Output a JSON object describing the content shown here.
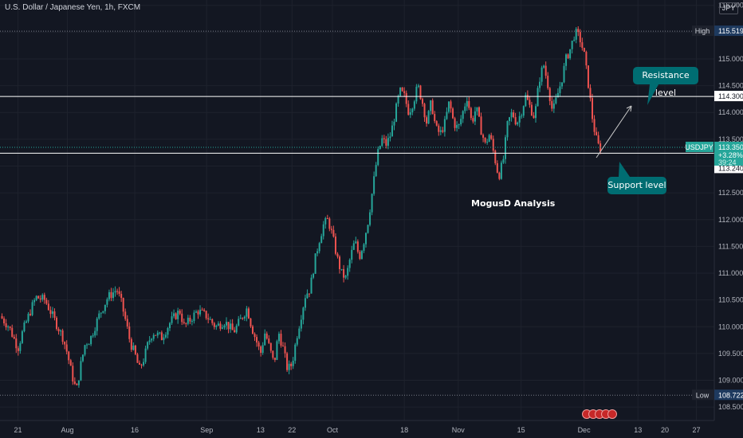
{
  "header": {
    "title": "U.S. Dollar / Japanese Yen, 1h, FXCM",
    "currency": "JPY"
  },
  "chart_data": {
    "type": "candlestick",
    "symbol": "USDJPY",
    "ylim": [
      108.25,
      116.1
    ],
    "y_ticks": [
      "108.500",
      "109.000",
      "109.500",
      "110.000",
      "110.500",
      "111.000",
      "111.500",
      "112.000",
      "112.500",
      "113.000",
      "113.500",
      "114.000",
      "114.500",
      "115.000",
      "115.500",
      "116.000"
    ],
    "x_ticks": [
      {
        "label": "21",
        "t": 0
      },
      {
        "label": "Aug",
        "t": 11
      },
      {
        "label": "16",
        "t": 26
      },
      {
        "label": "Sep",
        "t": 42
      },
      {
        "label": "13",
        "t": 54
      },
      {
        "label": "22",
        "t": 61
      },
      {
        "label": "Oct",
        "t": 70
      },
      {
        "label": "18",
        "t": 86
      },
      {
        "label": "Nov",
        "t": 98
      },
      {
        "label": "15",
        "t": 112
      },
      {
        "label": "Dec",
        "t": 126
      },
      {
        "label": "13",
        "t": 138
      },
      {
        "label": "20",
        "t": 144
      },
      {
        "label": "27",
        "t": 151
      }
    ],
    "t_range": [
      -4,
      155
    ],
    "series_close": [
      [
        -4,
        110.2
      ],
      [
        -2,
        110.0
      ],
      [
        0,
        109.6
      ],
      [
        1,
        109.9
      ],
      [
        3,
        110.35
      ],
      [
        4,
        110.55
      ],
      [
        6,
        110.5
      ],
      [
        8,
        110.15
      ],
      [
        10,
        109.8
      ],
      [
        11,
        109.5
      ],
      [
        12,
        109.1
      ],
      [
        13,
        108.8
      ],
      [
        14,
        109.3
      ],
      [
        15,
        109.7
      ],
      [
        16,
        109.75
      ],
      [
        18,
        110.2
      ],
      [
        20,
        110.55
      ],
      [
        22,
        110.7
      ],
      [
        23,
        110.45
      ],
      [
        24,
        110.1
      ],
      [
        25,
        109.7
      ],
      [
        26,
        109.5
      ],
      [
        27,
        109.2
      ],
      [
        28,
        109.4
      ],
      [
        29,
        109.7
      ],
      [
        30,
        109.9
      ],
      [
        32,
        109.8
      ],
      [
        34,
        110.1
      ],
      [
        36,
        110.3
      ],
      [
        37,
        110.0
      ],
      [
        38,
        110.1
      ],
      [
        40,
        110.3
      ],
      [
        42,
        110.2
      ],
      [
        44,
        110.0
      ],
      [
        46,
        110.1
      ],
      [
        48,
        109.9
      ],
      [
        50,
        110.2
      ],
      [
        51,
        110.35
      ],
      [
        52,
        110.0
      ],
      [
        54,
        109.5
      ],
      [
        55,
        109.9
      ],
      [
        57,
        109.3
      ],
      [
        58,
        109.9
      ],
      [
        59,
        109.6
      ],
      [
        60,
        109.2
      ],
      [
        61,
        109.3
      ],
      [
        62,
        109.8
      ],
      [
        63,
        110.2
      ],
      [
        64,
        110.6
      ],
      [
        65,
        110.7
      ],
      [
        66,
        111.2
      ],
      [
        67,
        111.6
      ],
      [
        68,
        111.9
      ],
      [
        69,
        112.0
      ],
      [
        70,
        111.7
      ],
      [
        71,
        111.3
      ],
      [
        72,
        111.0
      ],
      [
        73,
        110.9
      ],
      [
        74,
        111.3
      ],
      [
        75,
        111.6
      ],
      [
        76,
        111.3
      ],
      [
        77,
        111.6
      ],
      [
        78,
        112.0
      ],
      [
        79,
        112.6
      ],
      [
        80,
        113.2
      ],
      [
        81,
        113.5
      ],
      [
        82,
        113.4
      ],
      [
        83,
        113.6
      ],
      [
        84,
        114.0
      ],
      [
        85,
        114.4
      ],
      [
        86,
        114.3
      ],
      [
        87,
        114.0
      ],
      [
        88,
        114.2
      ],
      [
        89,
        114.5
      ],
      [
        90,
        114.2
      ],
      [
        91,
        113.8
      ],
      [
        92,
        114.2
      ],
      [
        93,
        113.7
      ],
      [
        94,
        113.6
      ],
      [
        95,
        113.8
      ],
      [
        96,
        114.2
      ],
      [
        97,
        113.8
      ],
      [
        98,
        113.7
      ],
      [
        99,
        114.0
      ],
      [
        100,
        114.3
      ],
      [
        101,
        113.8
      ],
      [
        102,
        114.1
      ],
      [
        103,
        113.7
      ],
      [
        104,
        113.4
      ],
      [
        105,
        113.6
      ],
      [
        106,
        113.2
      ],
      [
        107,
        112.8
      ],
      [
        108,
        113.1
      ],
      [
        109,
        113.8
      ],
      [
        110,
        114.0
      ],
      [
        111,
        113.8
      ],
      [
        112,
        114.0
      ],
      [
        113,
        114.3
      ],
      [
        114,
        114.1
      ],
      [
        115,
        113.9
      ],
      [
        116,
        114.6
      ],
      [
        117,
        114.9
      ],
      [
        118,
        114.5
      ],
      [
        119,
        114.0
      ],
      [
        120,
        114.3
      ],
      [
        121,
        114.6
      ],
      [
        122,
        115.0
      ],
      [
        123,
        115.2
      ],
      [
        124,
        115.5
      ],
      [
        125,
        115.4
      ],
      [
        126,
        115.1
      ],
      [
        127,
        114.5
      ],
      [
        128,
        113.8
      ],
      [
        129,
        113.4
      ],
      [
        130,
        113.3
      ]
    ],
    "lines": {
      "resistance": "114.300",
      "support": "113.240",
      "high_label": "High",
      "high_value": "115.519",
      "low_label": "Low",
      "low_value": "108.722",
      "last_price_value": "113.350"
    },
    "price_badge": {
      "symbol": "USDJPY",
      "price": "113.350",
      "change": "+3.28%",
      "countdown": "39:24"
    },
    "annotations": {
      "resistance_callout": "Resistance level",
      "support_callout": "Support level",
      "watermark": "MogusD Analysis"
    },
    "colors": {
      "background": "#131722",
      "up": "#26a69a",
      "down": "#ef5350",
      "grid": "#1e222d",
      "callout": "#006d72",
      "level_line": "#ffffff"
    }
  }
}
